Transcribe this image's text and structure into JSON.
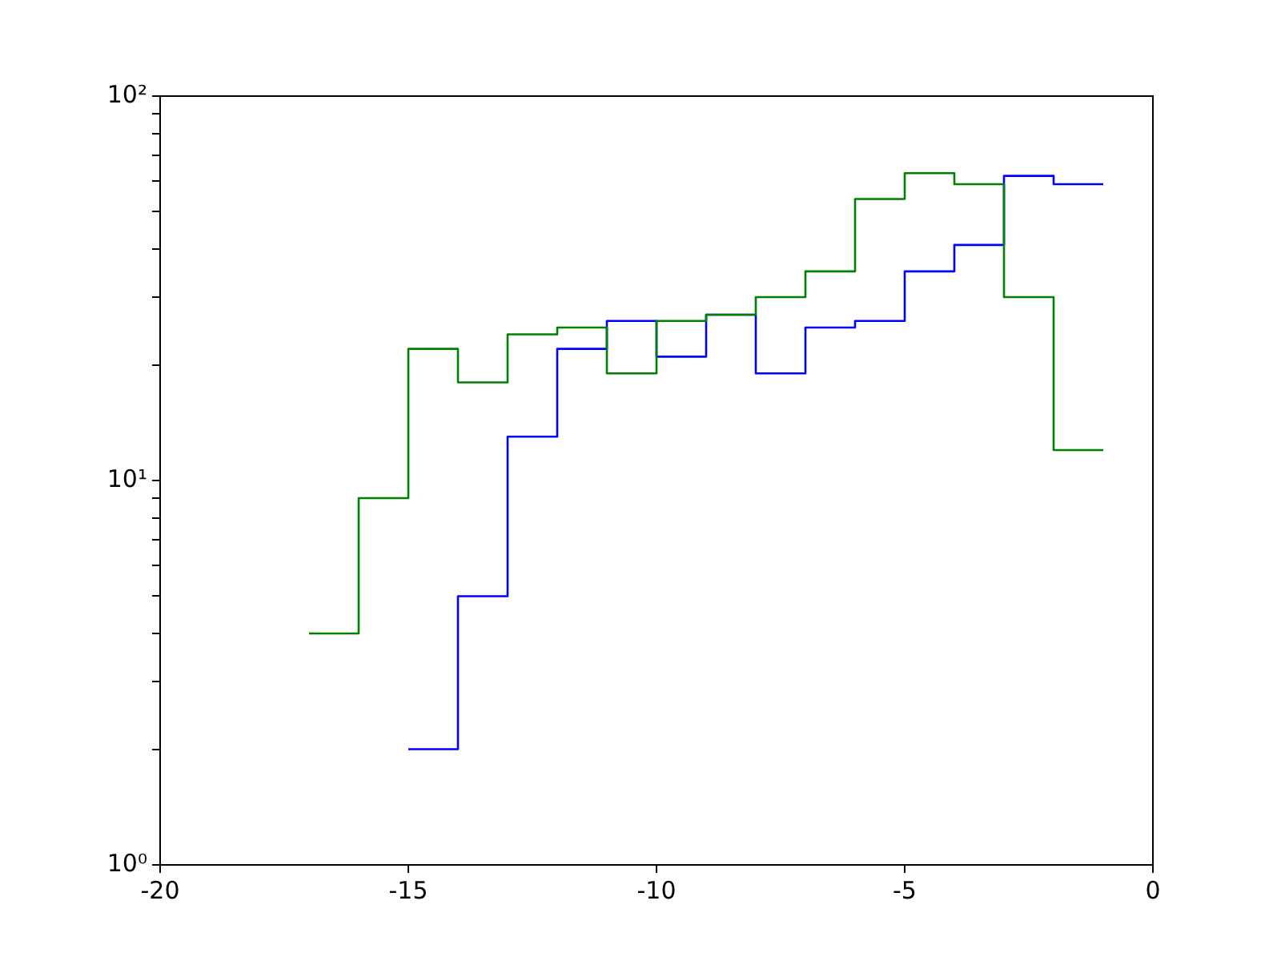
{
  "chart_data": {
    "type": "step",
    "log": "y",
    "grid": false,
    "legend": false,
    "marker": "none",
    "line_style": "solid",
    "xlim": [
      -20,
      0
    ],
    "xticks": [
      -20,
      -15,
      -10,
      -5,
      0
    ],
    "ylim": [
      1,
      100
    ],
    "yticks": [
      {
        "value": 1,
        "label": "10⁰"
      },
      {
        "value": 2,
        "label": null
      },
      {
        "value": 3,
        "label": null
      },
      {
        "value": 4,
        "label": null
      },
      {
        "value": 5,
        "label": null
      },
      {
        "value": 6,
        "label": null
      },
      {
        "value": 7,
        "label": null
      },
      {
        "value": 8,
        "label": null
      },
      {
        "value": 9,
        "label": null
      },
      {
        "value": 10,
        "label": "10¹"
      },
      {
        "value": 20,
        "label": null
      },
      {
        "value": 30,
        "label": null
      },
      {
        "value": 40,
        "label": null
      },
      {
        "value": 50,
        "label": null
      },
      {
        "value": 60,
        "label": null
      },
      {
        "value": 70,
        "label": null
      },
      {
        "value": 80,
        "label": null
      },
      {
        "value": 90,
        "label": null
      },
      {
        "value": 100,
        "label": "10²"
      }
    ],
    "series": [
      {
        "color": "#008000",
        "x": [
          -17,
          -16,
          -15,
          -14,
          -13,
          -12,
          -11,
          -10,
          -9,
          -8,
          -7,
          -6,
          -5,
          -4,
          -3,
          -2,
          -1
        ],
        "values": [
          4,
          9,
          22,
          18,
          24,
          25,
          19,
          26,
          27,
          30,
          35,
          54,
          63,
          59,
          30,
          12,
          12
        ]
      },
      {
        "color": "#0000ff",
        "x": [
          -15,
          -14,
          -13,
          -12,
          -11,
          -10,
          -9,
          -8,
          -7,
          -6,
          -5,
          -4,
          -3,
          -2,
          -1
        ],
        "values": [
          2,
          5,
          13,
          22,
          26,
          21,
          27,
          19,
          25,
          26,
          35,
          41,
          62,
          59,
          59
        ]
      }
    ]
  }
}
